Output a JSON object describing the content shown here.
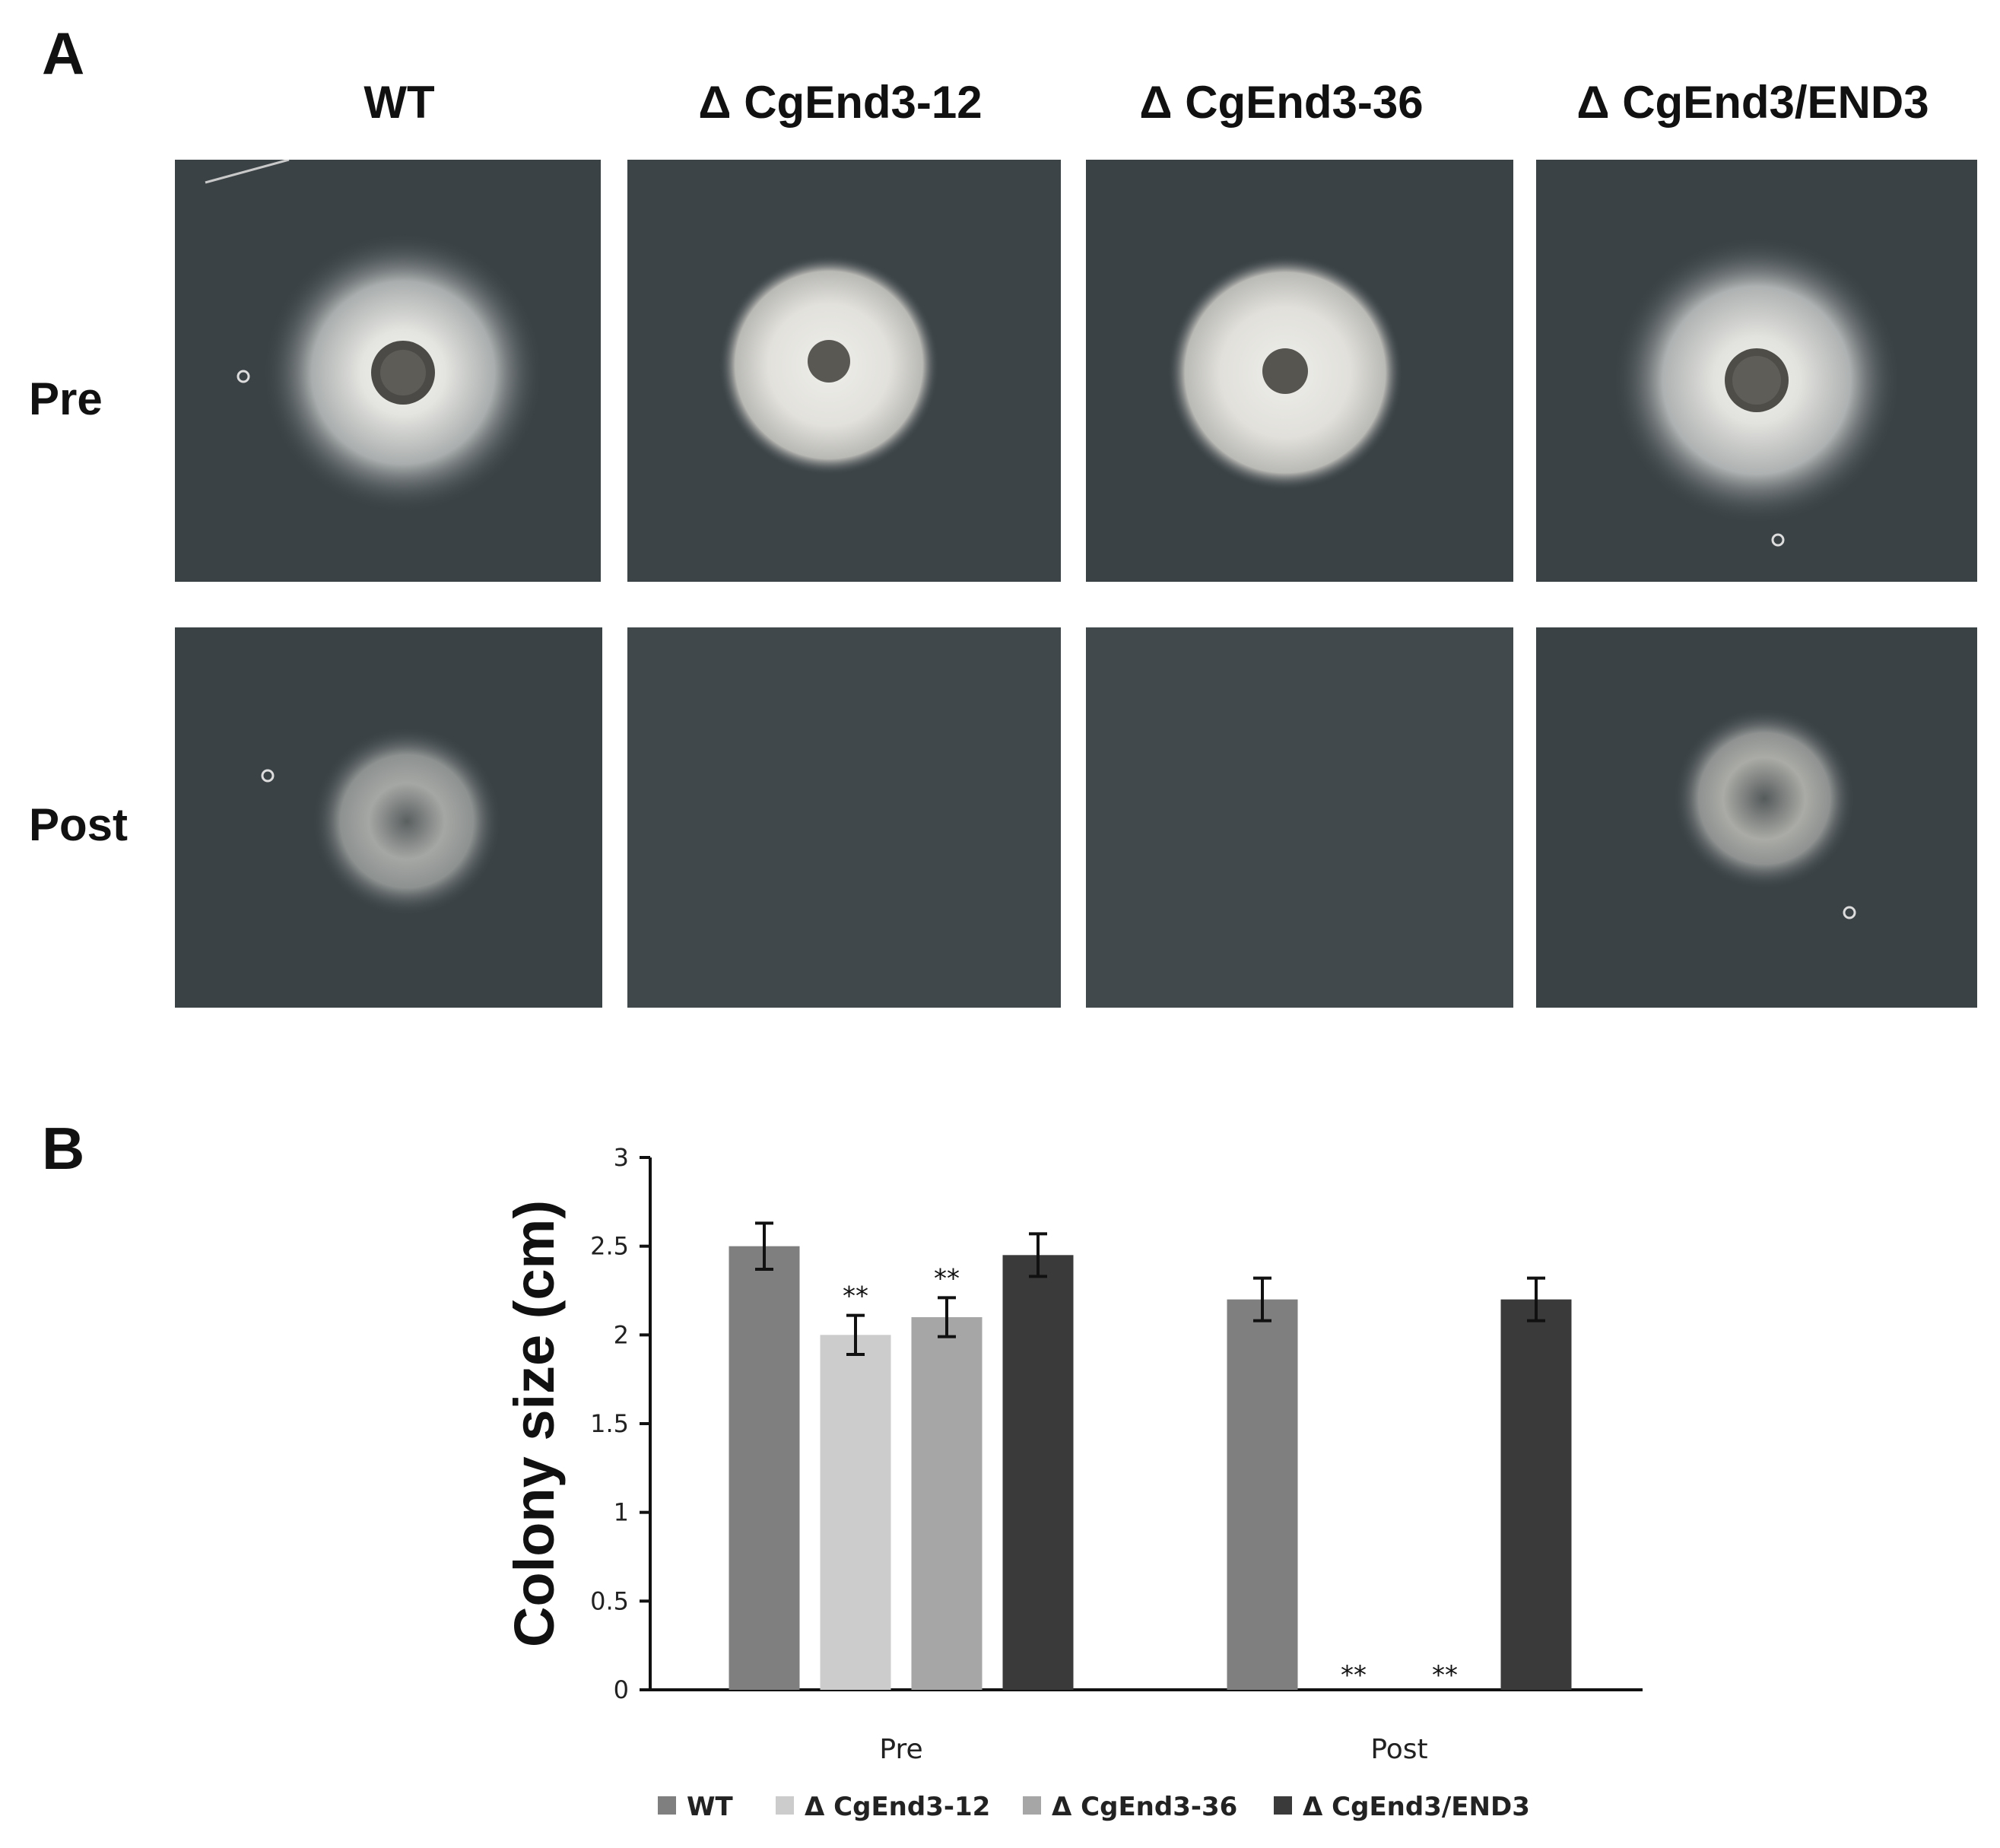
{
  "panel_a": {
    "letter": "A",
    "columns": [
      "WT",
      "Δ CgEnd3-12",
      "Δ CgEnd3-36",
      "Δ CgEnd3/END3"
    ],
    "rows": [
      "Pre",
      "Post"
    ]
  },
  "panel_b": {
    "letter": "B"
  },
  "chart_data": {
    "type": "bar",
    "categories": [
      "Pre",
      "Post"
    ],
    "ylabel": "Colony size (cm)",
    "xlabel": "",
    "ylim": [
      0,
      3
    ],
    "yticks": [
      "0",
      "0.5",
      "1",
      "1.5",
      "2",
      "2.5",
      "3"
    ],
    "legend_position": "bottom",
    "grid": false,
    "series": [
      {
        "name": "WT",
        "color": "#7f7f7f",
        "values": [
          2.5,
          2.2
        ],
        "errors": [
          0.13,
          0.12
        ],
        "significance": [
          "",
          ""
        ]
      },
      {
        "name": "Δ CgEnd3-12",
        "color": "#cccccc",
        "values": [
          2.0,
          0
        ],
        "errors": [
          0.11,
          0
        ],
        "significance": [
          "**",
          "**"
        ]
      },
      {
        "name": "Δ CgEnd3-36",
        "color": "#a6a6a6",
        "values": [
          2.1,
          0
        ],
        "errors": [
          0.11,
          0
        ],
        "significance": [
          "**",
          "**"
        ]
      },
      {
        "name": "Δ CgEnd3/END3",
        "color": "#3a3a3a",
        "values": [
          2.45,
          2.2
        ],
        "errors": [
          0.12,
          0.12
        ],
        "significance": [
          "",
          ""
        ]
      }
    ]
  }
}
